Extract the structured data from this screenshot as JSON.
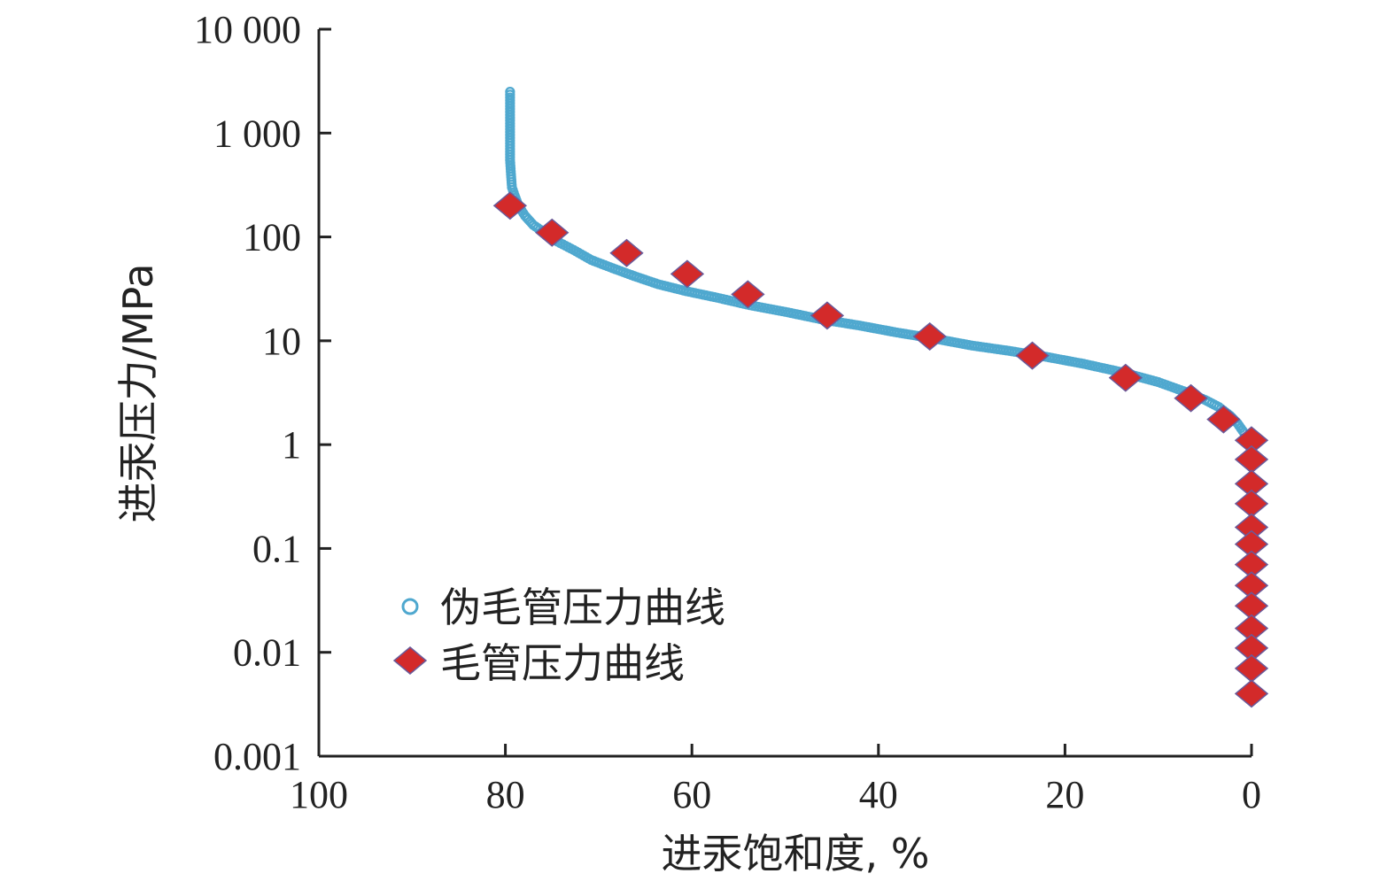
{
  "chart_data": {
    "type": "scatter",
    "xlabel": "进汞饱和度, %",
    "ylabel": "进汞压力/MPa",
    "xlim": [
      100,
      0
    ],
    "ylim": [
      0.001,
      10000
    ],
    "yscale": "log",
    "x_ticks": [
      "100",
      "80",
      "60",
      "40",
      "20",
      "0"
    ],
    "y_ticks": [
      "10 000",
      "1 000",
      "100",
      "10",
      "1",
      "0.1",
      "0.01",
      "0.001"
    ],
    "legend": {
      "position": "lower-left"
    },
    "colors": {
      "pseudo": "#4fa8cf",
      "capillary": "#d32a2a"
    },
    "series": [
      {
        "name": "伪毛管压力曲线",
        "marker": "circle",
        "x": [
          79.5,
          79.5,
          79.5,
          79.5,
          79.4,
          79.3,
          79.0,
          78.6,
          77.9,
          77.0,
          75.8,
          74.4,
          72.7,
          70.8,
          68.5,
          66.2,
          63.6,
          60.6,
          57.3,
          53.8,
          50.0,
          46.0,
          42.0,
          38.0,
          34.0,
          30.0,
          26.0,
          22.0,
          18.0,
          14.0,
          10.0,
          7.0,
          5.0,
          3.5,
          2.3,
          1.5,
          0.8
        ],
        "y": [
          2500,
          1500,
          900,
          550,
          400,
          300,
          250,
          200,
          160,
          130,
          110,
          90,
          75,
          60,
          50,
          42,
          35,
          30,
          26,
          22,
          19,
          16,
          14,
          12,
          10.5,
          9.0,
          8.0,
          7.0,
          6.0,
          5.0,
          4.0,
          3.2,
          2.7,
          2.3,
          1.9,
          1.6,
          1.3
        ]
      },
      {
        "name": "毛管压力曲线",
        "marker": "diamond",
        "x": [
          79.5,
          75.0,
          67.0,
          60.5,
          54.0,
          45.5,
          34.5,
          23.5,
          13.5,
          6.5,
          3.0,
          0,
          0,
          0,
          0,
          0,
          0,
          0,
          0,
          0,
          0,
          0,
          0,
          0
        ],
        "y": [
          200,
          110,
          70,
          44,
          28,
          17.5,
          11,
          7.2,
          4.4,
          2.8,
          1.75,
          1.1,
          0.72,
          0.42,
          0.27,
          0.16,
          0.11,
          0.07,
          0.044,
          0.028,
          0.017,
          0.011,
          0.007,
          0.004
        ]
      }
    ]
  }
}
